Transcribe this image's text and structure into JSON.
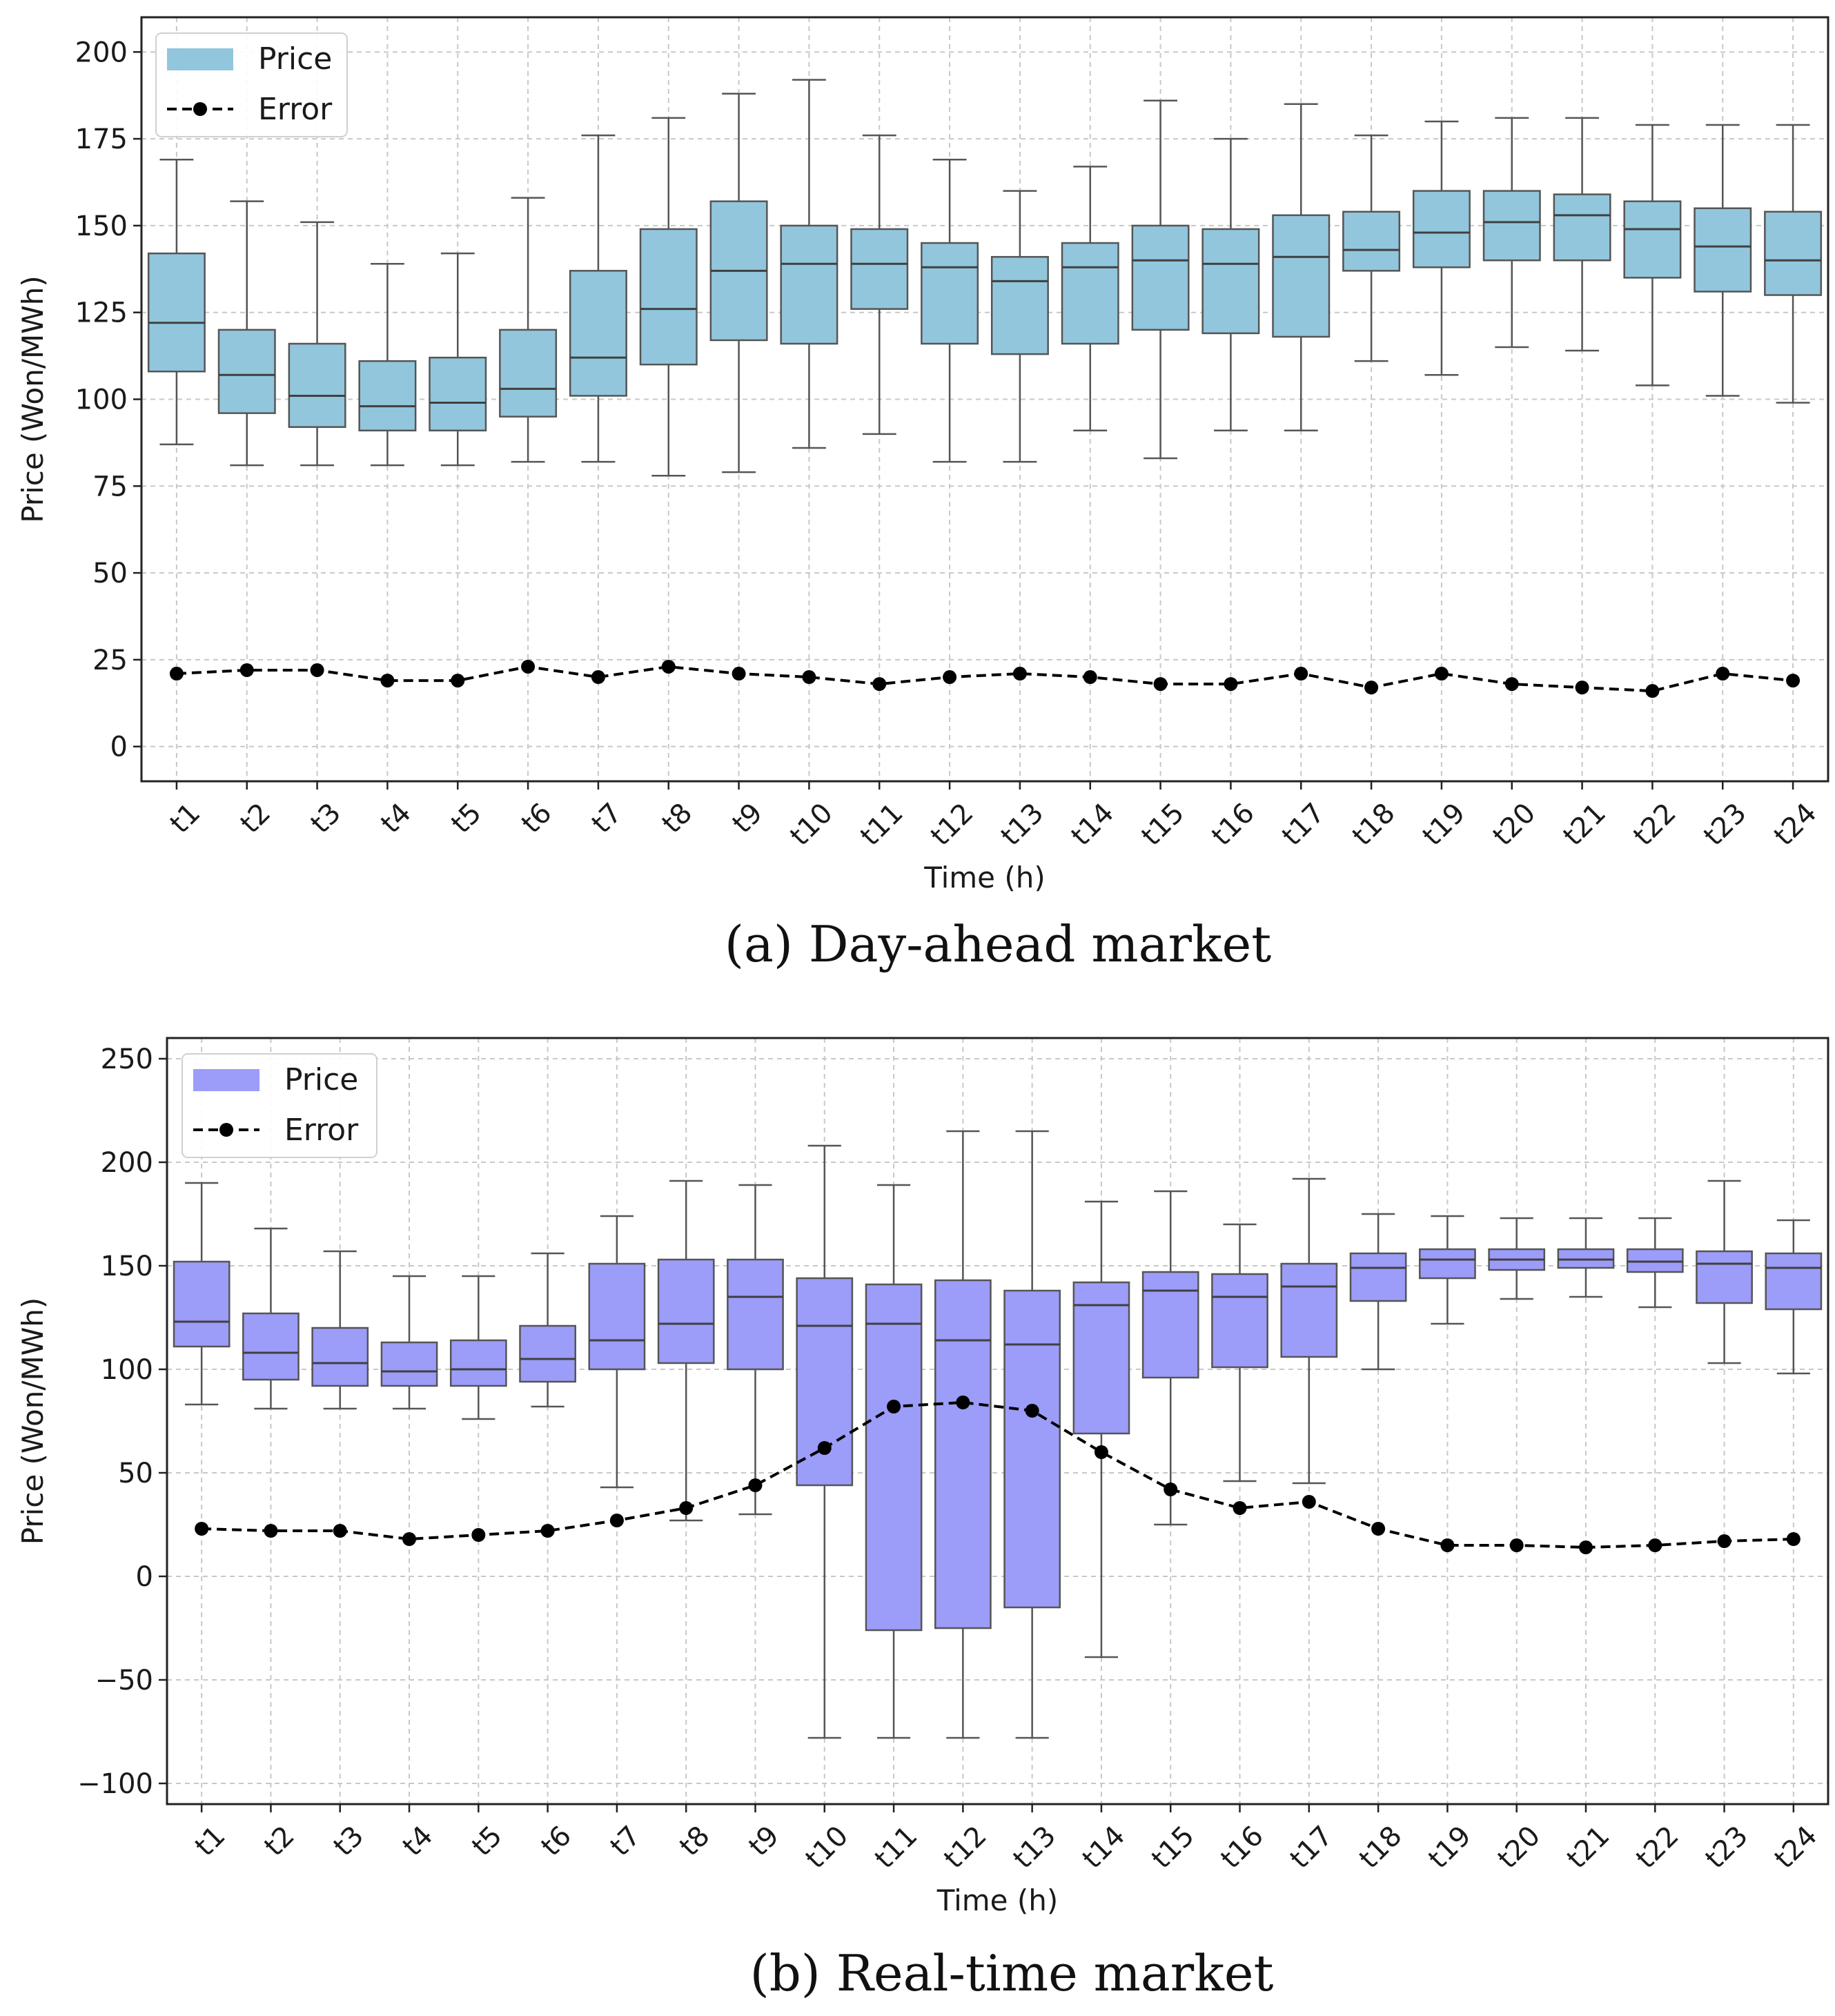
{
  "chart_data": [
    {
      "type": "box",
      "caption": "(a) Day-ahead market",
      "xlabel": "Time (h)",
      "ylabel": "Price (Won/MWh)",
      "ylim": [
        -10,
        210
      ],
      "yticks": [
        0,
        25,
        50,
        75,
        100,
        125,
        150,
        175,
        200
      ],
      "grid": true,
      "legend_position": "top-left",
      "box_color": "#92c6dc",
      "categories": [
        "t1",
        "t2",
        "t3",
        "t4",
        "t5",
        "t6",
        "t7",
        "t8",
        "t9",
        "t10",
        "t11",
        "t12",
        "t13",
        "t14",
        "t15",
        "t16",
        "t17",
        "t18",
        "t19",
        "t20",
        "t21",
        "t22",
        "t23",
        "t24"
      ],
      "series": [
        {
          "name": "Price",
          "type": "box",
          "whisker_low": [
            87,
            81,
            81,
            81,
            81,
            82,
            82,
            78,
            79,
            86,
            90,
            82,
            82,
            91,
            83,
            91,
            91,
            111,
            107,
            115,
            114,
            104,
            101,
            99
          ],
          "q1": [
            108,
            96,
            92,
            91,
            91,
            95,
            101,
            110,
            117,
            116,
            126,
            116,
            113,
            116,
            120,
            119,
            118,
            137,
            138,
            140,
            140,
            135,
            131,
            130
          ],
          "median": [
            122,
            107,
            101,
            98,
            99,
            103,
            112,
            126,
            137,
            139,
            139,
            138,
            134,
            138,
            140,
            139,
            141,
            143,
            148,
            151,
            153,
            149,
            144,
            140
          ],
          "q3": [
            142,
            120,
            116,
            111,
            112,
            120,
            137,
            149,
            157,
            150,
            149,
            145,
            141,
            145,
            150,
            149,
            153,
            154,
            160,
            160,
            159,
            157,
            155,
            154
          ],
          "whisker_high": [
            169,
            157,
            151,
            139,
            142,
            158,
            176,
            181,
            188,
            192,
            176,
            169,
            160,
            167,
            186,
            175,
            185,
            176,
            180,
            181,
            181,
            179,
            179,
            179
          ]
        },
        {
          "name": "Error",
          "type": "line",
          "style": "dashed",
          "marker": "circle",
          "color": "#000000",
          "values": [
            21,
            22,
            22,
            19,
            19,
            23,
            20,
            23,
            21,
            20,
            18,
            20,
            21,
            20,
            18,
            18,
            21,
            17,
            21,
            18,
            17,
            16,
            21,
            19
          ]
        }
      ]
    },
    {
      "type": "box",
      "caption": "(b) Real-time market",
      "xlabel": "Time (h)",
      "ylabel": "Price (Won/MWh)",
      "ylim": [
        -110,
        260
      ],
      "yticks": [
        -100,
        -50,
        0,
        50,
        100,
        150,
        200,
        250
      ],
      "ytick_labels": [
        "−100",
        "−50",
        "0",
        "50",
        "100",
        "150",
        "200",
        "250"
      ],
      "grid": true,
      "legend_position": "top-left",
      "box_color": "#9c9cf9",
      "categories": [
        "t1",
        "t2",
        "t3",
        "t4",
        "t5",
        "t6",
        "t7",
        "t8",
        "t9",
        "t10",
        "t11",
        "t12",
        "t13",
        "t14",
        "t15",
        "t16",
        "t17",
        "t18",
        "t19",
        "t20",
        "t21",
        "t22",
        "t23",
        "t24"
      ],
      "series": [
        {
          "name": "Price",
          "type": "box",
          "whisker_low": [
            83,
            81,
            81,
            81,
            76,
            82,
            43,
            27,
            30,
            -78,
            -78,
            -78,
            -78,
            -39,
            25,
            46,
            45,
            100,
            122,
            134,
            135,
            130,
            103,
            98
          ],
          "q1": [
            111,
            95,
            92,
            92,
            92,
            94,
            100,
            103,
            100,
            44,
            -26,
            -25,
            -15,
            69,
            96,
            101,
            106,
            133,
            144,
            148,
            149,
            147,
            132,
            129
          ],
          "median": [
            123,
            108,
            103,
            99,
            100,
            105,
            114,
            122,
            135,
            121,
            122,
            114,
            112,
            131,
            138,
            135,
            140,
            149,
            153,
            153,
            153,
            152,
            151,
            149
          ],
          "q3": [
            152,
            127,
            120,
            113,
            114,
            121,
            151,
            153,
            153,
            144,
            141,
            143,
            138,
            142,
            147,
            146,
            151,
            156,
            158,
            158,
            158,
            158,
            157,
            156
          ],
          "whisker_high": [
            190,
            168,
            157,
            145,
            145,
            156,
            174,
            191,
            189,
            208,
            189,
            215,
            215,
            181,
            186,
            170,
            192,
            175,
            174,
            173,
            173,
            173,
            191,
            172
          ]
        },
        {
          "name": "Error",
          "type": "line",
          "style": "dashed",
          "marker": "circle",
          "color": "#000000",
          "values": [
            23,
            22,
            22,
            18,
            20,
            22,
            27,
            33,
            44,
            62,
            82,
            84,
            80,
            60,
            42,
            33,
            36,
            23,
            15,
            15,
            14,
            15,
            17,
            18
          ]
        }
      ]
    }
  ]
}
